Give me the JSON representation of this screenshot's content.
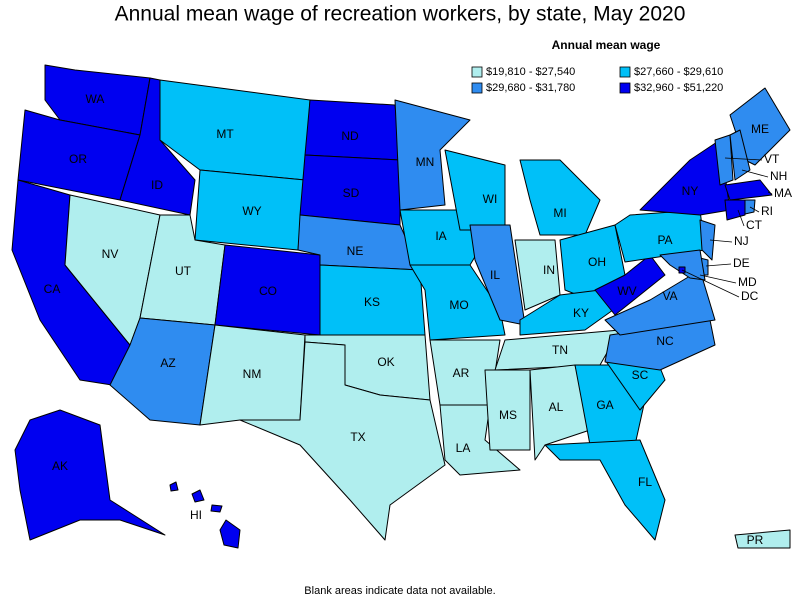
{
  "title": "Annual mean wage of recreation workers, by state, May 2020",
  "legend": {
    "title": "Annual mean wage",
    "items": [
      {
        "label": "$19,810 - $27,540",
        "color": "#b0eeee"
      },
      {
        "label": "$27,660 - $29,610",
        "color": "#00c0f8"
      },
      {
        "label": "$29,680 - $31,780",
        "color": "#2f8cf0"
      },
      {
        "label": "$32,960 - $51,220",
        "color": "#0000f0"
      }
    ]
  },
  "states": [
    {
      "label": "WA",
      "color": "#0000f0"
    },
    {
      "label": "OR",
      "color": "#0000f0"
    },
    {
      "label": "CA",
      "color": "#0000f0"
    },
    {
      "label": "NV",
      "color": "#b0eeee"
    },
    {
      "label": "ID",
      "color": "#0000f0"
    },
    {
      "label": "MT",
      "color": "#00c0f8"
    },
    {
      "label": "WY",
      "color": "#00c0f8"
    },
    {
      "label": "UT",
      "color": "#b0eeee"
    },
    {
      "label": "CO",
      "color": "#0000f0"
    },
    {
      "label": "AZ",
      "color": "#2f8cf0"
    },
    {
      "label": "NM",
      "color": "#b0eeee"
    },
    {
      "label": "ND",
      "color": "#0000f0"
    },
    {
      "label": "SD",
      "color": "#0000f0"
    },
    {
      "label": "NE",
      "color": "#2f8cf0"
    },
    {
      "label": "KS",
      "color": "#00c0f8"
    },
    {
      "label": "OK",
      "color": "#b0eeee"
    },
    {
      "label": "TX",
      "color": "#b0eeee"
    },
    {
      "label": "MN",
      "color": "#2f8cf0"
    },
    {
      "label": "IA",
      "color": "#00c0f8"
    },
    {
      "label": "MO",
      "color": "#00c0f8"
    },
    {
      "label": "AR",
      "color": "#b0eeee"
    },
    {
      "label": "LA",
      "color": "#b0eeee"
    },
    {
      "label": "WI",
      "color": "#00c0f8"
    },
    {
      "label": "IL",
      "color": "#2f8cf0"
    },
    {
      "label": "MI",
      "color": "#00c0f8"
    },
    {
      "label": "IN",
      "color": "#b0eeee"
    },
    {
      "label": "OH",
      "color": "#00c0f8"
    },
    {
      "label": "KY",
      "color": "#00c0f8"
    },
    {
      "label": "TN",
      "color": "#b0eeee"
    },
    {
      "label": "MS",
      "color": "#b0eeee"
    },
    {
      "label": "AL",
      "color": "#b0eeee"
    },
    {
      "label": "GA",
      "color": "#00c0f8"
    },
    {
      "label": "FL",
      "color": "#00c0f8"
    },
    {
      "label": "SC",
      "color": "#00c0f8"
    },
    {
      "label": "NC",
      "color": "#2f8cf0"
    },
    {
      "label": "VA",
      "color": "#2f8cf0"
    },
    {
      "label": "WV",
      "color": "#0000f0"
    },
    {
      "label": "PA",
      "color": "#00c0f8"
    },
    {
      "label": "NY",
      "color": "#0000f0"
    },
    {
      "label": "ME",
      "color": "#2f8cf0"
    },
    {
      "label": "VT",
      "color": "#2f8cf0"
    },
    {
      "label": "NH",
      "color": "#2f8cf0"
    },
    {
      "label": "MA",
      "color": "#0000f0"
    },
    {
      "label": "CT",
      "color": "#0000f0"
    },
    {
      "label": "RI",
      "color": "#2f8cf0"
    },
    {
      "label": "NJ",
      "color": "#2f8cf0"
    },
    {
      "label": "DE",
      "color": "#2f8cf0"
    },
    {
      "label": "MD",
      "color": "#2f8cf0"
    },
    {
      "label": "DC",
      "color": "#0000f0"
    },
    {
      "label": "AK",
      "color": "#0000f0"
    },
    {
      "label": "HI",
      "color": "#0000f0"
    },
    {
      "label": "PR",
      "color": "#b0eeee"
    }
  ],
  "footnote": "Blank areas indicate data not available."
}
